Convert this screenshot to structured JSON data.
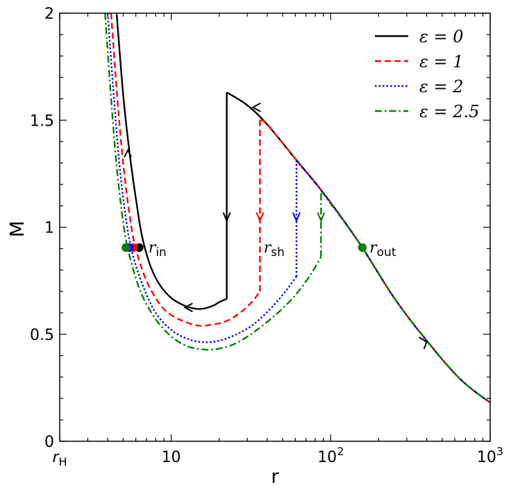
{
  "chart_data": {
    "type": "line",
    "title": "",
    "xlabel": "r",
    "ylabel": "M",
    "xscale": "log",
    "xlim": [
      2,
      1000
    ],
    "ylim": [
      0,
      2
    ],
    "grid": false,
    "legend_position": "top-right",
    "x_ticks": [
      {
        "value": 2,
        "label": "r",
        "sub": "H",
        "sup": ""
      },
      {
        "value": 10,
        "label": "10",
        "sub": "",
        "sup": ""
      },
      {
        "value": 100,
        "label": "10",
        "sub": "",
        "sup": "2"
      },
      {
        "value": 1000,
        "label": "10",
        "sub": "",
        "sup": "3"
      }
    ],
    "y_ticks": [
      {
        "value": 0,
        "label": "0"
      },
      {
        "value": 0.5,
        "label": "0.5"
      },
      {
        "value": 1,
        "label": "1"
      },
      {
        "value": 1.5,
        "label": "1.5"
      },
      {
        "value": 2,
        "label": "2"
      }
    ],
    "series": [
      {
        "name": "ε = 0",
        "color": "#000000",
        "dash": "solid",
        "inner_branch": [
          [
            4.55,
            2.0
          ],
          [
            5.0,
            1.62
          ],
          [
            5.5,
            1.34
          ],
          [
            6.1,
            1.1
          ],
          [
            6.6,
            0.95
          ],
          [
            7.4,
            0.82
          ],
          [
            8.5,
            0.73
          ],
          [
            10.0,
            0.67
          ],
          [
            12.0,
            0.635
          ],
          [
            14.0,
            0.62
          ],
          [
            16.0,
            0.62
          ],
          [
            18.5,
            0.635
          ],
          [
            20.0,
            0.65
          ],
          [
            22.3,
            0.665
          ]
        ],
        "shock_r": 22.3,
        "shock_M": [
          0.665,
          1.63
        ],
        "outer_branch": [
          [
            22.3,
            1.63
          ],
          [
            30.0,
            1.57
          ],
          [
            40.0,
            1.48
          ],
          [
            60.0,
            1.32
          ],
          [
            90.0,
            1.16
          ],
          [
            150.0,
            0.93
          ],
          [
            250.0,
            0.67
          ],
          [
            400.0,
            0.47
          ],
          [
            650.0,
            0.29
          ],
          [
            1000.0,
            0.18
          ]
        ]
      },
      {
        "name": "ε = 1",
        "color": "#ff0000",
        "dash": "dashed",
        "inner_branch": [
          [
            4.2,
            2.0
          ],
          [
            4.6,
            1.6
          ],
          [
            5.0,
            1.3
          ],
          [
            5.5,
            1.05
          ],
          [
            6.0,
            0.9
          ],
          [
            7.0,
            0.75
          ],
          [
            8.5,
            0.64
          ],
          [
            10.0,
            0.59
          ],
          [
            12.5,
            0.555
          ],
          [
            15.0,
            0.54
          ],
          [
            18.0,
            0.545
          ],
          [
            22.0,
            0.56
          ],
          [
            27.0,
            0.6
          ],
          [
            32.0,
            0.65
          ],
          [
            36.0,
            0.7
          ]
        ],
        "shock_r": 36.0,
        "shock_M": [
          0.7,
          1.5
        ],
        "outer_branch": [
          [
            36.0,
            1.5
          ],
          [
            40.0,
            1.48
          ],
          [
            60.0,
            1.32
          ],
          [
            90.0,
            1.16
          ],
          [
            150.0,
            0.93
          ],
          [
            250.0,
            0.67
          ],
          [
            400.0,
            0.47
          ],
          [
            650.0,
            0.29
          ],
          [
            1000.0,
            0.18
          ]
        ]
      },
      {
        "name": "ε = 2",
        "color": "#0000ff",
        "dash": "dotted",
        "inner_branch": [
          [
            4.0,
            2.0
          ],
          [
            4.4,
            1.58
          ],
          [
            4.8,
            1.25
          ],
          [
            5.3,
            1.0
          ],
          [
            5.8,
            0.86
          ],
          [
            6.7,
            0.72
          ],
          [
            8.0,
            0.6
          ],
          [
            10.0,
            0.52
          ],
          [
            12.5,
            0.48
          ],
          [
            15.0,
            0.465
          ],
          [
            18.5,
            0.465
          ],
          [
            24.0,
            0.49
          ],
          [
            32.0,
            0.54
          ],
          [
            42.0,
            0.62
          ],
          [
            52.0,
            0.7
          ],
          [
            61.0,
            0.77
          ]
        ],
        "shock_r": 61.0,
        "shock_M": [
          0.77,
          1.31
        ],
        "outer_branch": [
          [
            61.0,
            1.31
          ],
          [
            90.0,
            1.16
          ],
          [
            150.0,
            0.93
          ],
          [
            250.0,
            0.67
          ],
          [
            400.0,
            0.47
          ],
          [
            650.0,
            0.29
          ],
          [
            1000.0,
            0.18
          ]
        ]
      },
      {
        "name": "ε = 2.5",
        "color": "#008000",
        "dash": "dashdot",
        "inner_branch": [
          [
            3.85,
            2.0
          ],
          [
            4.2,
            1.6
          ],
          [
            4.6,
            1.25
          ],
          [
            5.1,
            0.98
          ],
          [
            5.6,
            0.84
          ],
          [
            6.5,
            0.69
          ],
          [
            8.0,
            0.57
          ],
          [
            10.0,
            0.49
          ],
          [
            12.5,
            0.445
          ],
          [
            15.5,
            0.43
          ],
          [
            19.0,
            0.43
          ],
          [
            25.0,
            0.455
          ],
          [
            33.0,
            0.51
          ],
          [
            45.0,
            0.59
          ],
          [
            58.0,
            0.67
          ],
          [
            72.0,
            0.76
          ],
          [
            87.0,
            0.86
          ]
        ],
        "shock_r": 87.0,
        "shock_M": [
          0.86,
          1.17
        ],
        "outer_branch": [
          [
            87.0,
            1.17
          ],
          [
            150.0,
            0.93
          ],
          [
            250.0,
            0.67
          ],
          [
            400.0,
            0.47
          ],
          [
            650.0,
            0.29
          ],
          [
            1000.0,
            0.18
          ]
        ]
      }
    ],
    "critical_points": [
      {
        "label": "r",
        "sub": "in",
        "r": 6.3,
        "M": 0.905,
        "color": "#000000"
      },
      {
        "label": "r",
        "sub": "in",
        "r": 5.8,
        "M": 0.905,
        "color": "#ff0000"
      },
      {
        "label": "r",
        "sub": "in",
        "r": 5.45,
        "M": 0.905,
        "color": "#0000ff"
      },
      {
        "label": "r",
        "sub": "in",
        "r": 5.2,
        "M": 0.905,
        "color": "#008000"
      },
      {
        "label": "r",
        "sub": "out",
        "r": 158.0,
        "M": 0.905,
        "color": "#008000"
      }
    ],
    "annotations": [
      {
        "text": "r",
        "sub": "in",
        "r": 7.2,
        "M": 0.905
      },
      {
        "text": "r",
        "sub": "sh",
        "r": 38.0,
        "M": 0.905
      },
      {
        "text": "r",
        "sub": "out",
        "r": 175.0,
        "M": 0.905
      }
    ]
  }
}
